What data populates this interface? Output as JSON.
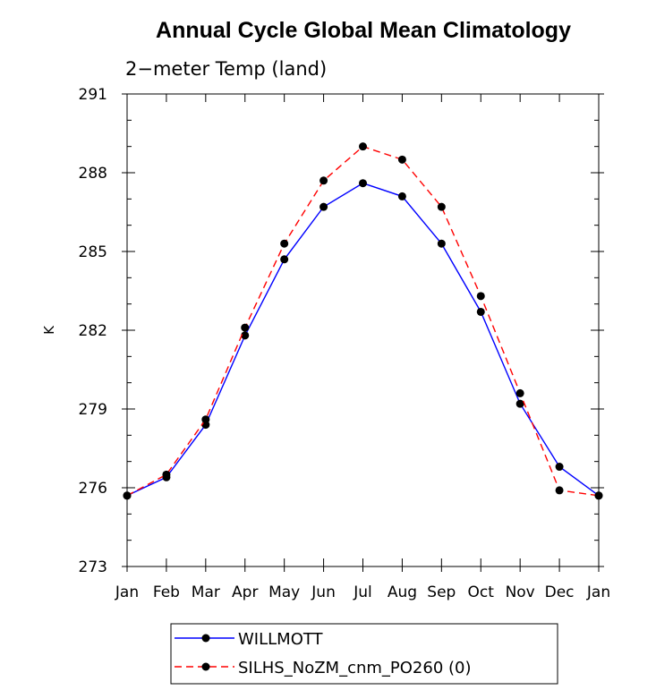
{
  "chart_data": {
    "type": "line",
    "title": "Annual Cycle Global Mean Climatology",
    "subtitle": "2−meter Temp (land)",
    "xlabel": "",
    "ylabel": "K",
    "categories": [
      "Jan",
      "Feb",
      "Mar",
      "Apr",
      "May",
      "Jun",
      "Jul",
      "Aug",
      "Sep",
      "Oct",
      "Nov",
      "Dec",
      "Jan"
    ],
    "ylim": [
      273,
      291
    ],
    "yticks": [
      273,
      276,
      279,
      282,
      285,
      288,
      291
    ],
    "ytick_labels": [
      "273",
      "276",
      "279",
      "282",
      "285",
      "288",
      "291"
    ],
    "grid": false,
    "legend_position": "bottom",
    "series": [
      {
        "name": "WILLMOTT",
        "color": "#0000ff",
        "line_style": "solid",
        "marker": "circle",
        "values": [
          275.7,
          276.4,
          278.4,
          281.8,
          284.7,
          286.7,
          287.6,
          287.1,
          285.3,
          282.7,
          279.2,
          276.8,
          275.7
        ]
      },
      {
        "name": "SILHS_NoZM_cnm_PO260 (0)",
        "color": "#ff0000",
        "line_style": "dashed",
        "marker": "circle",
        "values": [
          275.7,
          276.5,
          278.6,
          282.1,
          285.3,
          287.7,
          289.0,
          288.5,
          286.7,
          283.3,
          279.6,
          275.9,
          275.7
        ]
      }
    ]
  }
}
